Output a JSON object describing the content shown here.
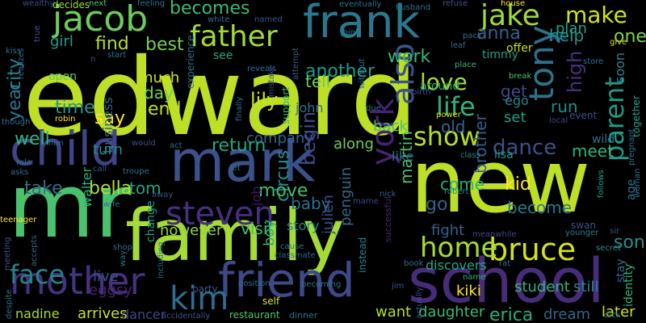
{
  "words": [
    {
      "text": "edward",
      "color": "#bddf26",
      "rotate": 0
    },
    {
      "text": "new",
      "color": "#bddf26",
      "rotate": 0
    },
    {
      "text": "mr",
      "color": "#4ac16d",
      "rotate": 0
    },
    {
      "text": "family",
      "color": "#a5db36",
      "rotate": 0
    },
    {
      "text": "school",
      "color": "#472c7a",
      "rotate": 0
    },
    {
      "text": "mark",
      "color": "#3b518b",
      "rotate": 0
    },
    {
      "text": "child",
      "color": "#414487",
      "rotate": 0
    },
    {
      "text": "frank",
      "color": "#2a788e",
      "rotate": 0
    },
    {
      "text": "friend",
      "color": "#3e4989",
      "rotate": 0
    },
    {
      "text": "mother",
      "color": "#46327e",
      "rotate": 0
    },
    {
      "text": "jacob",
      "color": "#6ccd5a",
      "rotate": 0
    },
    {
      "text": "father",
      "color": "#a2da37",
      "rotate": 0
    },
    {
      "text": "tony",
      "color": "#2c728e",
      "rotate": 270
    },
    {
      "text": "jake",
      "color": "#a0da39",
      "rotate": 0
    },
    {
      "text": "steven",
      "color": "#46307e",
      "rotate": 0
    },
    {
      "text": "kim",
      "color": "#2e6e8e",
      "rotate": 0
    },
    {
      "text": "bruce",
      "color": "#d5e21a",
      "rotate": 0
    },
    {
      "text": "home",
      "color": "#a5db36",
      "rotate": 0
    },
    {
      "text": "york",
      "color": "#482374",
      "rotate": 270
    },
    {
      "text": "show",
      "color": "#b5de2b",
      "rotate": 0
    },
    {
      "text": "also",
      "color": "#3b528b",
      "rotate": 270
    },
    {
      "text": "face",
      "color": "#25858e",
      "rotate": 0
    },
    {
      "text": "parent",
      "color": "#1f9a8a",
      "rotate": 270
    },
    {
      "text": "life",
      "color": "#2db27d",
      "rotate": 0
    },
    {
      "text": "make",
      "color": "#d2e21b",
      "rotate": 0
    },
    {
      "text": "love",
      "color": "#a8db34",
      "rotate": 0
    },
    {
      "text": "dance",
      "color": "#3b518b",
      "rotate": 0
    },
    {
      "text": "becomes",
      "color": "#3aba76",
      "rotate": 0
    },
    {
      "text": "lily",
      "color": "#cae11f",
      "rotate": 0
    },
    {
      "text": "anna",
      "color": "#33628d",
      "rotate": 0
    },
    {
      "text": "high",
      "color": "#46327e",
      "rotate": 270
    },
    {
      "text": "city",
      "color": "#25838e",
      "rotate": 270
    },
    {
      "text": "year",
      "color": "#2c738e",
      "rotate": 270
    },
    {
      "text": "girl",
      "color": "#1fa088",
      "rotate": 0
    },
    {
      "text": "find",
      "color": "#b5de2b",
      "rotate": 0
    },
    {
      "text": "best",
      "color": "#75d054",
      "rotate": 0
    },
    {
      "text": "time",
      "color": "#1f988b",
      "rotate": 0
    },
    {
      "text": "end",
      "color": "#c2df23",
      "rotate": 0
    },
    {
      "text": "day",
      "color": "#75d054",
      "rotate": 0
    },
    {
      "text": "much",
      "color": "#cde11d",
      "rotate": 0
    },
    {
      "text": "say",
      "color": "#fde725",
      "rotate": 0
    },
    {
      "text": "business",
      "color": "#33638d",
      "rotate": 270
    },
    {
      "text": "company",
      "color": "#32648e",
      "rotate": 0
    },
    {
      "text": "return",
      "color": "#22a785",
      "rotate": 0
    },
    {
      "text": "circus",
      "color": "#228d8d",
      "rotate": 270
    },
    {
      "text": "move",
      "color": "#44bf70",
      "rotate": 0
    },
    {
      "text": "begin",
      "color": "#3e4989",
      "rotate": 270
    },
    {
      "text": "baby",
      "color": "#2e6f8e",
      "rotate": 0
    },
    {
      "text": "bella",
      "color": "#b2dd2d",
      "rotate": 0
    },
    {
      "text": "tom",
      "color": "#20a386",
      "rotate": 0
    },
    {
      "text": "take",
      "color": "#2c728e",
      "rotate": 0
    },
    {
      "text": "well",
      "color": "#2fb47c",
      "rotate": 0
    },
    {
      "text": "turn",
      "color": "#218f8d",
      "rotate": 0
    },
    {
      "text": "work",
      "color": "#38b977",
      "rotate": 0
    },
    {
      "text": "another",
      "color": "#1e9c89",
      "rotate": 0
    },
    {
      "text": "tell",
      "color": "#6ccd5a",
      "rotate": 0
    },
    {
      "text": "old",
      "color": "#31668e",
      "rotate": 0
    },
    {
      "text": "help",
      "color": "#1f978b",
      "rotate": 0
    },
    {
      "text": "meet",
      "color": "#2db27d",
      "rotate": 0
    },
    {
      "text": "one",
      "color": "#7fd34e",
      "rotate": 0
    },
    {
      "text": "son",
      "color": "#21918c",
      "rotate": 0
    },
    {
      "text": "kid",
      "color": "#fde725",
      "rotate": 0
    },
    {
      "text": "come",
      "color": "#29af7f",
      "rotate": 0
    },
    {
      "text": "become",
      "color": "#29798e",
      "rotate": 0
    },
    {
      "text": "go",
      "color": "#35608d",
      "rotate": 0
    },
    {
      "text": "get",
      "color": "#3f4889",
      "rotate": 0
    },
    {
      "text": "run",
      "color": "#228c8d",
      "rotate": 0
    },
    {
      "text": "set",
      "color": "#1fa088",
      "rotate": 0
    },
    {
      "text": "martin",
      "color": "#4cc26c",
      "rotate": 270
    },
    {
      "text": "brother",
      "color": "#365d8d",
      "rotate": 270
    },
    {
      "text": "penguin",
      "color": "#31688e",
      "rotate": 270
    },
    {
      "text": "visit",
      "color": "#3dbc74",
      "rotate": 0
    },
    {
      "text": "however",
      "color": "#8ed645",
      "rotate": 0
    },
    {
      "text": "boy",
      "color": "#29af7f",
      "rotate": 270
    },
    {
      "text": "fight",
      "color": "#33628d",
      "rotate": 0
    },
    {
      "text": "walter",
      "color": "#2ab07f",
      "rotate": 270
    },
    {
      "text": "live",
      "color": "#3c4f8a",
      "rotate": 0
    },
    {
      "text": "eggsy",
      "color": "#482173",
      "rotate": 0
    },
    {
      "text": "want",
      "color": "#b2dd2d",
      "rotate": 0
    },
    {
      "text": "daughter",
      "color": "#3bbb75",
      "rotate": 0
    },
    {
      "text": "erica",
      "color": "#27ad81",
      "rotate": 0
    },
    {
      "text": "dream",
      "color": "#32658e",
      "rotate": 0
    },
    {
      "text": "later",
      "color": "#d0e11c",
      "rotate": 0
    },
    {
      "text": "kiki",
      "color": "#fde725",
      "rotate": 0
    },
    {
      "text": "nadine",
      "color": "#a8db34",
      "rotate": 0
    },
    {
      "text": "arrives",
      "color": "#c8e020",
      "rotate": 0
    },
    {
      "text": "dancer",
      "color": "#404588",
      "rotate": 0
    },
    {
      "text": "student",
      "color": "#32b67a",
      "rotate": 0
    },
    {
      "text": "still",
      "color": "#24878e",
      "rotate": 0
    },
    {
      "text": "discovers",
      "color": "#22a785",
      "rotate": 0
    },
    {
      "text": "lisa",
      "color": "#1f978b",
      "rotate": 0
    },
    {
      "text": "like",
      "color": "#2c738e",
      "rotate": 0
    },
    {
      "text": "back",
      "color": "#4ac16d",
      "rotate": 0
    },
    {
      "text": "along",
      "color": "#6ece58",
      "rotate": 0
    },
    {
      "text": "julien",
      "color": "#3a538b",
      "rotate": 270
    },
    {
      "text": "john",
      "color": "#2c738e",
      "rotate": 0
    },
    {
      "text": "story",
      "color": "#24868e",
      "rotate": 0
    },
    {
      "text": "job",
      "color": "#471164",
      "rotate": 270
    },
    {
      "text": "experience",
      "color": "#2e6f8e",
      "rotate": 270
    },
    {
      "text": "change",
      "color": "#1fa187",
      "rotate": 270
    },
    {
      "text": "support",
      "color": "#35b779",
      "rotate": 270
    },
    {
      "text": "identity",
      "color": "#2fb47c",
      "rotate": 270
    },
    {
      "text": "together",
      "color": "#22a785",
      "rotate": 270
    },
    {
      "text": "timmy",
      "color": "#1f9f88",
      "rotate": 0
    },
    {
      "text": "offer",
      "color": "#c2df23",
      "rotate": 0
    },
    {
      "text": "plan",
      "color": "#20a386",
      "rotate": 0
    },
    {
      "text": "around",
      "color": "#2ab07f",
      "rotate": 0
    },
    {
      "text": "ego",
      "color": "#26828e",
      "rotate": 0
    },
    {
      "text": "stay",
      "color": "#2e6e8e",
      "rotate": 270
    },
    {
      "text": "soon",
      "color": "#24878e",
      "rotate": 270
    },
    {
      "text": "age",
      "color": "#2d708e",
      "rotate": 270
    },
    {
      "text": "wild",
      "color": "#2c728e",
      "rotate": 0
    },
    {
      "text": "event",
      "color": "#3a538b",
      "rotate": 0
    },
    {
      "text": "see",
      "color": "#22a884",
      "rotate": 0
    },
    {
      "text": "open",
      "color": "#5ec962",
      "rotate": 0
    },
    {
      "text": "instead",
      "color": "#25848e",
      "rotate": 270
    },
    {
      "text": "successful",
      "color": "#482677",
      "rotate": 270
    },
    {
      "text": "self",
      "color": "#dce319",
      "rotate": 0
    },
    {
      "text": "party",
      "color": "#38598c",
      "rotate": 0
    },
    {
      "text": "restaurant",
      "color": "#52c569",
      "rotate": 0
    },
    {
      "text": "dinner",
      "color": "#2d708e",
      "rotate": 0
    },
    {
      "text": "position",
      "color": "#2c738e",
      "rotate": 0
    },
    {
      "text": "becoming",
      "color": "#2c738e",
      "rotate": 0
    },
    {
      "text": "accidentally",
      "color": "#39568c",
      "rotate": 0
    },
    {
      "text": "meanwhile",
      "color": "#3e4a89",
      "rotate": 0
    },
    {
      "text": "robert",
      "color": "#20928c",
      "rotate": 0
    },
    {
      "text": "mame",
      "color": "#3e4a89",
      "rotate": 0
    },
    {
      "text": "nick",
      "color": "#355f8d",
      "rotate": 0
    },
    {
      "text": "swan",
      "color": "#3b528b",
      "rotate": 0
    },
    {
      "text": "sir",
      "color": "#3b528b",
      "rotate": 0
    },
    {
      "text": "secret",
      "color": "#21918c",
      "rotate": 0
    },
    {
      "text": "younger",
      "color": "#26828e",
      "rotate": 0
    },
    {
      "text": "rat",
      "color": "#2e6f8e",
      "rotate": 0
    },
    {
      "text": "book",
      "color": "#2d708e",
      "rotate": 0
    },
    {
      "text": "jim",
      "color": "#3a538b",
      "rotate": 0
    },
    {
      "text": "actually",
      "color": "#3b528b",
      "rotate": 270
    },
    {
      "text": "name",
      "color": "#2fb47c",
      "rotate": 0
    },
    {
      "text": "dick",
      "color": "#2e6f8e",
      "rotate": 0
    },
    {
      "text": "woman",
      "color": "#2d708e",
      "rotate": 270
    },
    {
      "text": "pregnant",
      "color": "#2c728e",
      "rotate": 270
    },
    {
      "text": "follows",
      "color": "#20a486",
      "rotate": 270
    },
    {
      "text": "local",
      "color": "#404588",
      "rotate": 0
    },
    {
      "text": "store",
      "color": "#2d708e",
      "rotate": 0
    },
    {
      "text": "park",
      "color": "#31688e",
      "rotate": 0
    },
    {
      "text": "break",
      "color": "#4ac16d",
      "rotate": 0
    },
    {
      "text": "place",
      "color": "#35b779",
      "rotate": 0
    },
    {
      "text": "power",
      "color": "#d5e21a",
      "rotate": 0
    },
    {
      "text": "due",
      "color": "#2c728e",
      "rotate": 0
    },
    {
      "text": "class",
      "color": "#238a8d",
      "rotate": 0
    },
    {
      "text": "birth",
      "color": "#3c4f8a",
      "rotate": 0
    },
    {
      "text": "leaf",
      "color": "#2e6e8e",
      "rotate": 0
    },
    {
      "text": "pack",
      "color": "#2c738e",
      "rotate": 0
    },
    {
      "text": "give",
      "color": "#d8e219",
      "rotate": 0
    },
    {
      "text": "house",
      "color": "#fde725",
      "rotate": 0
    },
    {
      "text": "refuse",
      "color": "#3b528b",
      "rotate": 0
    },
    {
      "text": "husband",
      "color": "#2c738e",
      "rotate": 0
    },
    {
      "text": "eventually",
      "color": "#2c728e",
      "rotate": 0
    },
    {
      "text": "named",
      "color": "#3a538b",
      "rotate": 0
    },
    {
      "text": "white",
      "color": "#2c728e",
      "rotate": 0
    },
    {
      "text": "feeling",
      "color": "#2c728e",
      "rotate": 0
    },
    {
      "text": "next",
      "color": "#52c569",
      "rotate": 0
    },
    {
      "text": "decides",
      "color": "#a0da39",
      "rotate": 0
    },
    {
      "text": "wealthy",
      "color": "#3e4a89",
      "rotate": 0
    },
    {
      "text": "true",
      "color": "#3a538b",
      "rotate": 270
    },
    {
      "text": "kiss",
      "color": "#2d708e",
      "rotate": 0
    },
    {
      "text": "realizes",
      "color": "#31688e",
      "rotate": 270
    },
    {
      "text": "start",
      "color": "#2d708e",
      "rotate": 0
    },
    {
      "text": "n",
      "color": "#3a538b",
      "rotate": 0
    },
    {
      "text": "reveals",
      "color": "#2d708e",
      "rotate": 0
    },
    {
      "text": "join",
      "color": "#2c728e",
      "rotate": 0
    },
    {
      "text": "without",
      "color": "#2c738e",
      "rotate": 270
    },
    {
      "text": "attempt",
      "color": "#3a538b",
      "rotate": 270
    },
    {
      "text": "mistake",
      "color": "#3e4a89",
      "rotate": 270
    },
    {
      "text": "finally",
      "color": "#2c738e",
      "rotate": 270
    },
    {
      "text": "though",
      "color": "#2e6f8e",
      "rotate": 0
    },
    {
      "text": "robin",
      "color": "#fde725",
      "rotate": 0
    },
    {
      "text": "film",
      "color": "#31688e",
      "rotate": 0
    },
    {
      "text": "would",
      "color": "#3b528b",
      "rotate": 0
    },
    {
      "text": "act",
      "color": "#2d708e",
      "rotate": 0
    },
    {
      "text": "fly",
      "color": "#3e4a89",
      "rotate": 270
    },
    {
      "text": "let",
      "color": "#2c738e",
      "rotate": 0
    },
    {
      "text": "role",
      "color": "#2c728e",
      "rotate": 0
    },
    {
      "text": "asks",
      "color": "#2c728e",
      "rotate": 0
    },
    {
      "text": "call",
      "color": "#3a538b",
      "rotate": 0
    },
    {
      "text": "troupe",
      "color": "#2c728e",
      "rotate": 0
    },
    {
      "text": "away",
      "color": "#3b528b",
      "rotate": 0
    },
    {
      "text": "wife",
      "color": "#2c728e",
      "rotate": 0
    },
    {
      "text": "teenager",
      "color": "#fde725",
      "rotate": 0
    },
    {
      "text": "meeting",
      "color": "#3a538b",
      "rotate": 270
    },
    {
      "text": "accepts",
      "color": "#31688e",
      "rotate": 270
    },
    {
      "text": "shop",
      "color": "#2e6f8e",
      "rotate": 0
    },
    {
      "text": "way",
      "color": "#2c728e",
      "rotate": 270
    },
    {
      "text": "including",
      "color": "#2c728e",
      "rotate": 270
    },
    {
      "text": "cause",
      "color": "#2c738e",
      "rotate": 0
    },
    {
      "text": "classmate",
      "color": "#31688e",
      "rotate": 0
    },
    {
      "text": "despite",
      "color": "#2e6f8e",
      "rotate": 270
    }
  ]
}
